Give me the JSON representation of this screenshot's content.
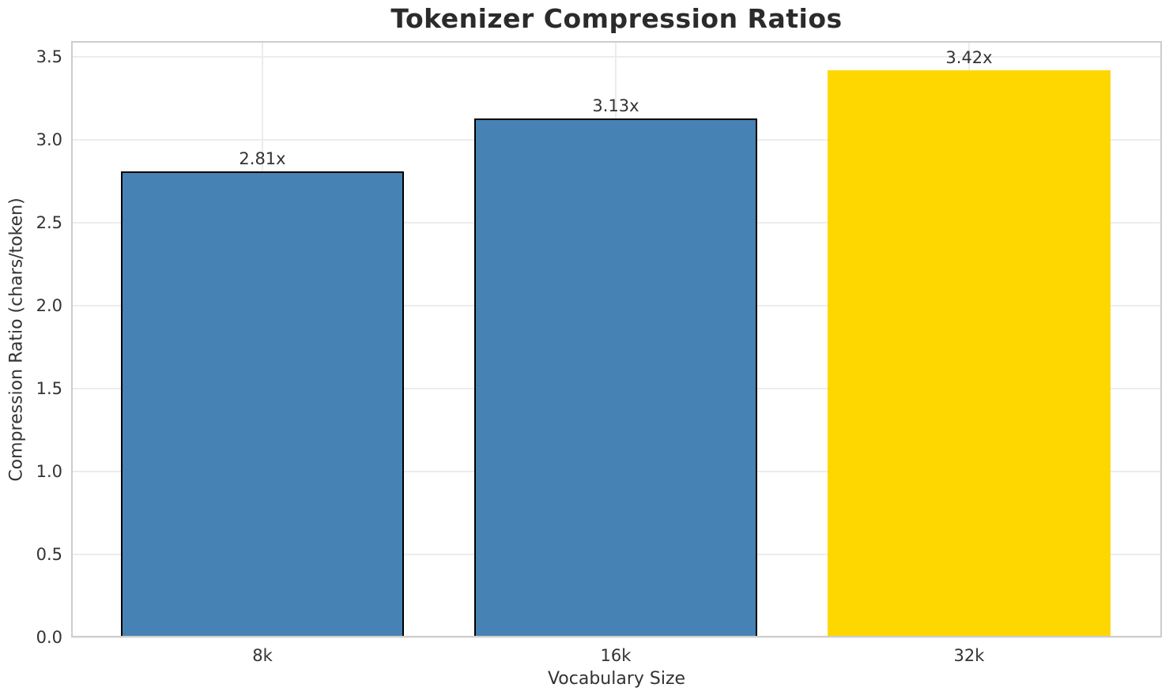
{
  "chart_data": {
    "type": "bar",
    "title": "Tokenizer Compression Ratios",
    "xlabel": "Vocabulary Size",
    "ylabel": "Compression Ratio (chars/token)",
    "categories": [
      "8k",
      "16k",
      "32k"
    ],
    "values": [
      2.81,
      3.13,
      3.42
    ],
    "bar_labels": [
      "2.81x",
      "3.13x",
      "3.42x"
    ],
    "bar_colors": [
      "#4682b4",
      "#4682b4",
      "#ffd700"
    ],
    "bar_edge_colors": [
      "#000000",
      "#000000",
      "none"
    ],
    "ylim": [
      0,
      3.6
    ],
    "yticks": [
      0,
      0.5,
      1,
      1.5,
      2,
      2.5,
      3,
      3.5
    ],
    "ytick_labels": [
      "0.0",
      "0.5",
      "1.0",
      "1.5",
      "2.0",
      "2.5",
      "3.0",
      "3.5"
    ],
    "grid": true,
    "grid_color": "#ececec",
    "spine_color": "#cdcdcd",
    "text_color": "#333333",
    "title_color": "#2b2b2b",
    "background": "#ffffff",
    "legend": "none"
  }
}
